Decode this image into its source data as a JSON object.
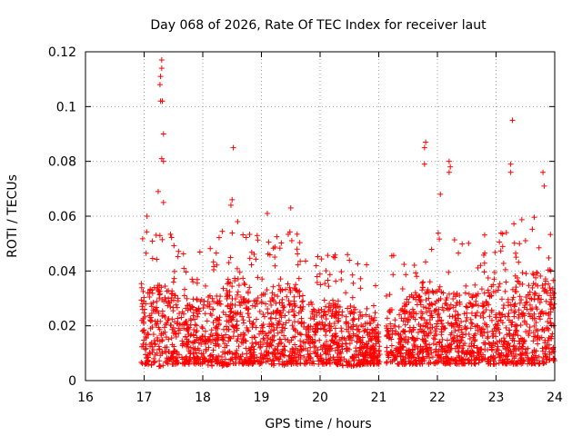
{
  "chart_data": {
    "type": "scatter",
    "title": "Day 068 of 2026, Rate Of TEC Index for receiver laut",
    "xlabel": "GPS time / hours",
    "ylabel": "ROTI / TECUs",
    "xlim": [
      16,
      24
    ],
    "ylim": [
      0,
      0.12
    ],
    "xticks": [
      "16",
      "17",
      "18",
      "19",
      "20",
      "21",
      "22",
      "23",
      "24"
    ],
    "yticks": [
      "0",
      "0.02",
      "0.04",
      "0.06",
      "0.08",
      "0.1",
      "0.12"
    ],
    "grid": true,
    "marker": "+",
    "color": "#ff0000",
    "hourly_profile": {
      "description_x_hours": [
        17.0,
        17.25,
        17.5,
        17.75,
        18.0,
        18.25,
        18.5,
        18.75,
        19.0,
        19.25,
        19.5,
        19.75,
        20.0,
        20.25,
        20.5,
        20.75,
        21.0,
        21.25,
        21.5,
        21.75,
        22.0,
        22.25,
        22.5,
        22.75,
        23.0,
        23.25,
        23.5,
        23.75,
        24.0
      ],
      "typical_min": [
        0.006,
        0.005,
        0.006,
        0.006,
        0.006,
        0.005,
        0.006,
        0.006,
        0.006,
        0.005,
        0.006,
        0.006,
        0.006,
        0.006,
        0.005,
        0.006,
        0.006,
        0.006,
        0.006,
        0.006,
        0.006,
        0.006,
        0.006,
        0.006,
        0.006,
        0.006,
        0.006,
        0.006,
        0.007
      ],
      "typical_max": [
        0.035,
        0.036,
        0.033,
        0.03,
        0.03,
        0.032,
        0.04,
        0.035,
        0.033,
        0.035,
        0.037,
        0.03,
        0.027,
        0.03,
        0.028,
        0.025,
        0.025,
        0.027,
        0.031,
        0.035,
        0.034,
        0.033,
        0.032,
        0.033,
        0.035,
        0.037,
        0.04,
        0.04,
        0.033
      ]
    },
    "notable_points": [
      {
        "x": 17.3,
        "y": 0.117
      },
      {
        "x": 17.3,
        "y": 0.114
      },
      {
        "x": 17.28,
        "y": 0.111
      },
      {
        "x": 17.27,
        "y": 0.108
      },
      {
        "x": 17.28,
        "y": 0.102
      },
      {
        "x": 17.31,
        "y": 0.102
      },
      {
        "x": 17.33,
        "y": 0.09
      },
      {
        "x": 17.3,
        "y": 0.081
      },
      {
        "x": 17.33,
        "y": 0.08
      },
      {
        "x": 17.24,
        "y": 0.069
      },
      {
        "x": 17.33,
        "y": 0.065
      },
      {
        "x": 18.52,
        "y": 0.085
      },
      {
        "x": 18.5,
        "y": 0.066
      },
      {
        "x": 18.48,
        "y": 0.064
      },
      {
        "x": 21.8,
        "y": 0.087
      },
      {
        "x": 21.78,
        "y": 0.085
      },
      {
        "x": 22.2,
        "y": 0.08
      },
      {
        "x": 22.22,
        "y": 0.078
      },
      {
        "x": 22.2,
        "y": 0.076
      },
      {
        "x": 21.78,
        "y": 0.079
      },
      {
        "x": 23.28,
        "y": 0.095
      },
      {
        "x": 23.25,
        "y": 0.079
      },
      {
        "x": 23.25,
        "y": 0.076
      },
      {
        "x": 23.8,
        "y": 0.076
      },
      {
        "x": 23.82,
        "y": 0.071
      },
      {
        "x": 17.05,
        "y": 0.06
      },
      {
        "x": 19.1,
        "y": 0.061
      },
      {
        "x": 19.5,
        "y": 0.063
      },
      {
        "x": 22.05,
        "y": 0.068
      }
    ]
  }
}
